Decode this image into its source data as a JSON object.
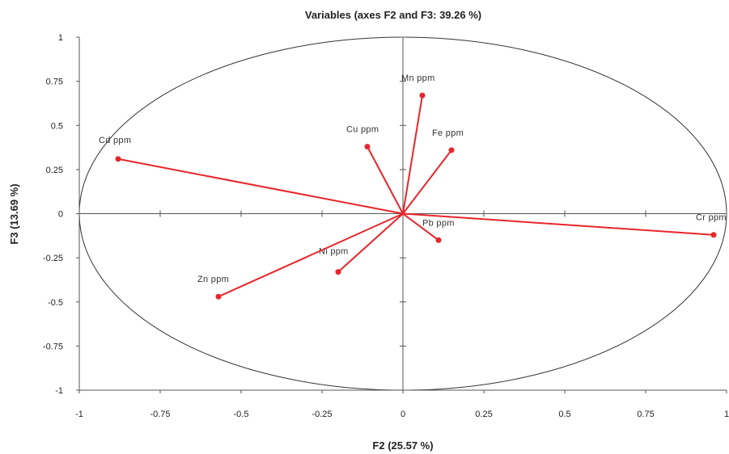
{
  "chart_data": {
    "type": "scatter",
    "subtype": "correlation-circle",
    "title": "Variables (axes F2 and F3: 39.26 %)",
    "xlabel": "F2 (25.57 %)",
    "ylabel": "F3 (13.69 %)",
    "xlim": [
      -1,
      1
    ],
    "ylim": [
      -1,
      1
    ],
    "x_ticks": [
      "-1",
      "-0.75",
      "-0.5",
      "-0.25",
      "0",
      "0.25",
      "0.5",
      "0.75",
      "1"
    ],
    "y_ticks": [
      "1",
      "0.75",
      "0.5",
      "0.25",
      "0",
      "-0.25",
      "-0.5",
      "-0.75",
      "-1"
    ],
    "line_color": "#e8262a",
    "circle_color": "#333333",
    "points": [
      {
        "label": "Mn ppm",
        "x": 0.06,
        "y": 0.67
      },
      {
        "label": "Cu ppm",
        "x": -0.11,
        "y": 0.38
      },
      {
        "label": "Fe ppm",
        "x": 0.15,
        "y": 0.36
      },
      {
        "label": "Cd ppm",
        "x": -0.88,
        "y": 0.31
      },
      {
        "label": "Pb ppm",
        "x": 0.11,
        "y": -0.15
      },
      {
        "label": "Cr ppm",
        "x": 0.96,
        "y": -0.12
      },
      {
        "label": "Ni ppm",
        "x": -0.2,
        "y": -0.33
      },
      {
        "label": "Zn ppm",
        "x": -0.57,
        "y": -0.47
      }
    ]
  }
}
